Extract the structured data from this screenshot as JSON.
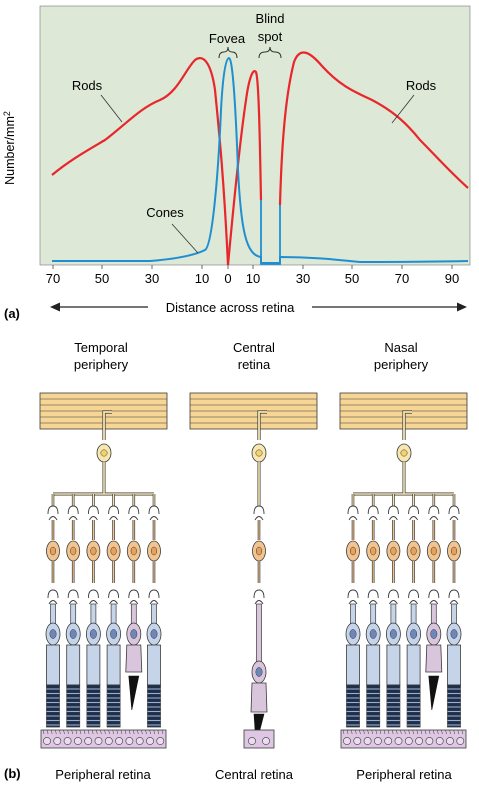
{
  "panel_a": {
    "label": "(a)",
    "y_axis_label": "Number/mm",
    "y_axis_label_sup": "2",
    "x_axis_caption": "Distance across retina",
    "x_ticks": [
      "70",
      "50",
      "30",
      "10",
      "0",
      "10",
      "30",
      "50",
      "70",
      "90"
    ],
    "annotations": {
      "rods_left": "Rods",
      "rods_right": "Rods",
      "cones": "Cones",
      "fovea": "Fovea",
      "blind_spot_line1": "Blind",
      "blind_spot_line2": "spot"
    },
    "colors": {
      "rods": "#e8262b",
      "cones": "#1e8fd0",
      "background": "#dde8d6"
    }
  },
  "chart_data": {
    "type": "line",
    "x_ticks": [
      "70",
      "50",
      "30",
      "10",
      "0",
      "10",
      "30",
      "50",
      "70",
      "90"
    ],
    "series": [
      {
        "name": "Rods",
        "color": "#e8262b"
      },
      {
        "name": "Cones",
        "color": "#1e8fd0"
      }
    ]
  },
  "panel_b": {
    "label": "(b)",
    "columns": [
      {
        "heading_line1": "Temporal",
        "heading_line2": "periphery",
        "caption": "Peripheral retina"
      },
      {
        "heading_line1": "Central",
        "heading_line2": "retina",
        "caption": "Central retina"
      },
      {
        "heading_line1": "Nasal",
        "heading_line2": "periphery",
        "caption": "Peripheral retina"
      }
    ],
    "colors": {
      "fiber_band": "#f6d595",
      "ganglion": "#f7e7b0",
      "bipolar": "#f2c48f",
      "cone": "#d9c6dd",
      "rod": "#c6d4ea",
      "pigment": "#ddc7e2",
      "outline": "#3a3a3a"
    }
  }
}
